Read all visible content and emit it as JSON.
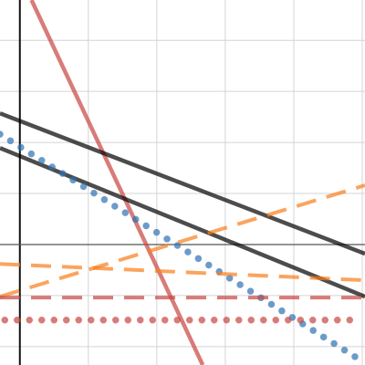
{
  "chart_data": {
    "type": "line",
    "xlim": [
      -0.29,
      5.04
    ],
    "ylim": [
      -2.36,
      4.79
    ],
    "xticks": [
      0,
      1,
      2,
      3,
      4,
      5
    ],
    "yticks": [
      -2,
      -1,
      0,
      1,
      2,
      3,
      4
    ],
    "grid": true,
    "series": [
      {
        "color": "#c74440",
        "style": "solid",
        "x": [
          0.17,
          2.67
        ],
        "values": [
          4.79,
          -2.36
        ]
      },
      {
        "color": "#000000",
        "style": "solid",
        "x": [
          -0.29,
          5.04
        ],
        "values": [
          2.57,
          -0.18
        ]
      },
      {
        "color": "#000000",
        "style": "solid",
        "x": [
          -0.29,
          5.04
        ],
        "values": [
          1.89,
          -1.02
        ]
      },
      {
        "color": "#2d70b3",
        "style": "dotted",
        "x": [
          -0.29,
          5.04
        ],
        "values": [
          2.16,
          -2.32
        ]
      },
      {
        "color": "#fa7e19",
        "style": "dashed",
        "x": [
          -0.29,
          5.04
        ],
        "values": [
          -1.02,
          1.16
        ]
      },
      {
        "color": "#fa7e19",
        "style": "dashed",
        "x": [
          -0.29,
          5.04
        ],
        "values": [
          -0.38,
          -0.7
        ]
      },
      {
        "color": "#c74440",
        "style": "dashed",
        "x": [
          -0.29,
          5.04
        ],
        "values": [
          -1.04,
          -1.04
        ]
      },
      {
        "color": "#c74440",
        "style": "dotted",
        "x": [
          -0.22,
          4.91
        ],
        "values": [
          -1.48,
          -1.48
        ]
      }
    ]
  }
}
